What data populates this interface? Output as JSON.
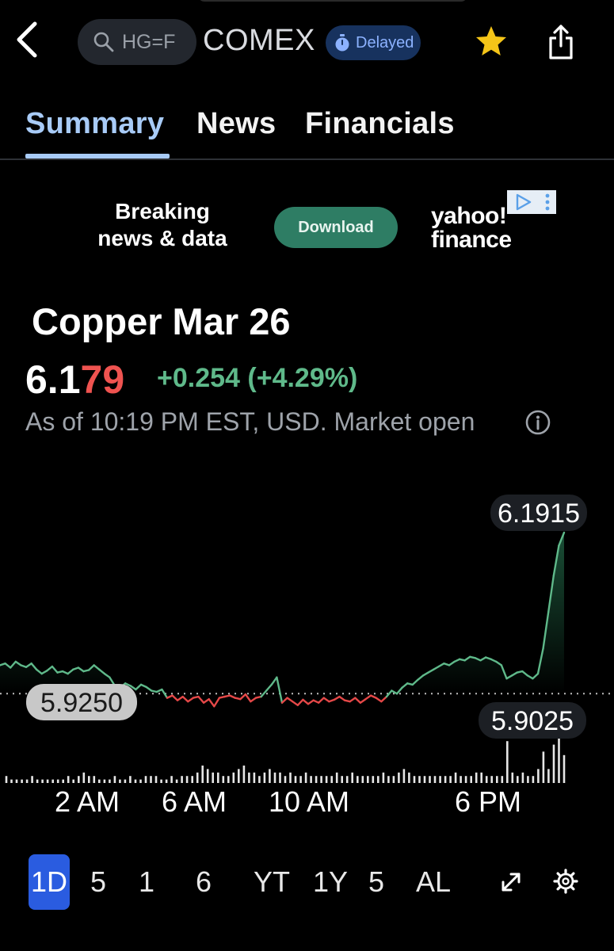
{
  "header": {
    "search_text": "HG=F",
    "exchange": "COMEX",
    "delayed_label": "Delayed"
  },
  "tabs": [
    {
      "label": "Summary"
    },
    {
      "label": "News"
    },
    {
      "label": "Financials"
    }
  ],
  "ad": {
    "line1": "Breaking",
    "line2": "news & data",
    "button_label": "Download",
    "logo_line1": "yahoo!",
    "logo_line2": "finance"
  },
  "quote": {
    "title": "Copper Mar 26",
    "price_main": "6.1",
    "price_highlight": "79",
    "change": "+0.254 (+4.29%)",
    "as_of": "As of 10:19 PM EST, USD. Market open"
  },
  "chart_data": {
    "type": "line",
    "x_tick_labels": [
      "2 AM",
      "6 AM",
      "10 AM",
      "6 PM"
    ],
    "high_label": "6.1915",
    "prev_close_label": "5.9250",
    "low_label": "5.9025",
    "previous_close": 5.925,
    "series": [
      {
        "values": [
          5.972,
          5.975,
          5.968,
          5.978,
          5.972,
          5.969,
          5.975,
          5.965,
          5.958,
          5.963,
          5.97,
          5.96,
          5.962,
          5.958,
          5.965,
          5.968,
          5.962,
          5.964,
          5.972,
          5.965,
          5.958,
          5.952,
          5.938,
          5.935,
          5.942,
          5.938,
          5.932,
          5.94,
          5.936,
          5.93,
          5.928,
          5.932,
          5.918,
          5.922,
          5.914,
          5.92,
          5.912,
          5.918,
          5.92,
          5.91,
          5.916,
          5.904,
          5.918,
          5.92,
          5.922,
          5.918,
          5.916,
          5.924,
          5.912,
          5.918,
          5.92,
          5.93,
          5.94,
          5.952,
          5.91,
          5.918,
          5.912,
          5.906,
          5.915,
          5.908,
          5.914,
          5.91,
          5.918,
          5.912,
          5.915,
          5.92,
          5.914,
          5.912,
          5.918,
          5.91,
          5.916,
          5.922,
          5.918,
          5.912,
          5.92,
          5.93,
          5.925,
          5.935,
          5.942,
          5.94,
          5.948,
          5.955,
          5.96,
          5.965,
          5.97,
          5.975,
          5.972,
          5.978,
          5.982,
          5.98,
          5.986,
          5.984,
          5.98,
          5.985,
          5.982,
          5.978,
          5.972,
          5.95,
          5.955,
          5.96,
          5.962,
          5.955,
          5.95,
          5.958,
          6.0,
          6.06,
          6.12,
          6.17,
          6.1915
        ],
        "color": "#5fb98a",
        "below_color": "#e54848"
      }
    ],
    "volume": [
      2,
      1,
      1,
      1,
      1,
      2,
      1,
      1,
      1,
      1,
      1,
      1,
      2,
      1,
      2,
      3,
      2,
      2,
      1,
      1,
      1,
      2,
      1,
      1,
      2,
      1,
      1,
      2,
      2,
      2,
      1,
      1,
      2,
      1,
      2,
      2,
      2,
      3,
      5,
      4,
      3,
      3,
      2,
      2,
      3,
      4,
      5,
      3,
      3,
      2,
      3,
      4,
      3,
      3,
      2,
      3,
      2,
      2,
      3,
      2,
      2,
      2,
      2,
      2,
      3,
      2,
      2,
      3,
      2,
      2,
      2,
      2,
      2,
      3,
      2,
      2,
      3,
      4,
      3,
      2,
      2,
      2,
      2,
      2,
      2,
      2,
      2,
      3,
      2,
      2,
      2,
      3,
      3,
      2,
      2,
      2,
      2,
      12,
      3,
      2,
      3,
      2,
      2,
      4,
      9,
      4,
      11,
      14,
      8
    ]
  },
  "range_selector": [
    "1D",
    "5",
    "1",
    "6",
    "YT",
    "1Y",
    "5",
    "AL"
  ],
  "colors": {
    "accent_tab": "#a8cbf7",
    "positive": "#5fb98a",
    "negative": "#ef5350",
    "range_selected": "#2a5ce0",
    "star": "#f5c518"
  }
}
